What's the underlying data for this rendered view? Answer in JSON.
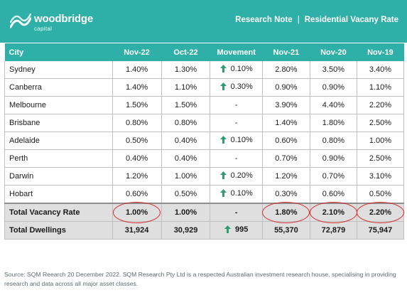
{
  "brand": {
    "name": "woodbridge",
    "sub": "capital"
  },
  "header": {
    "note": "Research Note",
    "separator": "|",
    "subject": "Residential Vacany Rate"
  },
  "table": {
    "columns": [
      "City",
      "Nov-22",
      "Oct-22",
      "Movement",
      "Nov-21",
      "Nov-20",
      "Nov-19"
    ],
    "rows": [
      {
        "city": "Sydney",
        "nov22": "1.40%",
        "oct22": "1.30%",
        "movement": "0.10%",
        "up": true,
        "nov21": "2.80%",
        "nov20": "3.50%",
        "nov19": "3.40%"
      },
      {
        "city": "Canberra",
        "nov22": "1.40%",
        "oct22": "1.10%",
        "movement": "0.30%",
        "up": true,
        "nov21": "0.90%",
        "nov20": "0.90%",
        "nov19": "1.10%"
      },
      {
        "city": "Melbourne",
        "nov22": "1.50%",
        "oct22": "1.50%",
        "movement": "-",
        "up": false,
        "nov21": "3.90%",
        "nov20": "4.40%",
        "nov19": "2.20%"
      },
      {
        "city": "Brisbane",
        "nov22": "0.80%",
        "oct22": "0.80%",
        "movement": "-",
        "up": false,
        "nov21": "1.40%",
        "nov20": "1.80%",
        "nov19": "2.50%"
      },
      {
        "city": "Adelaide",
        "nov22": "0.50%",
        "oct22": "0.40%",
        "movement": "0.10%",
        "up": true,
        "nov21": "0.60%",
        "nov20": "0.80%",
        "nov19": "1.00%"
      },
      {
        "city": "Perth",
        "nov22": "0.40%",
        "oct22": "0.40%",
        "movement": "-",
        "up": false,
        "nov21": "0.70%",
        "nov20": "0.90%",
        "nov19": "2.50%"
      },
      {
        "city": "Darwin",
        "nov22": "1.20%",
        "oct22": "1.00%",
        "movement": "0.20%",
        "up": true,
        "nov21": "1.20%",
        "nov20": "0.70%",
        "nov19": "3.10%"
      },
      {
        "city": "Hobart",
        "nov22": "0.60%",
        "oct22": "0.50%",
        "movement": "0.10%",
        "up": true,
        "nov21": "0.30%",
        "nov20": "0.60%",
        "nov19": "0.50%"
      }
    ],
    "total_vacancy": {
      "label": "Total Vacancy Rate",
      "nov22": "1.00%",
      "oct22": "1.00%",
      "movement": "-",
      "nov21": "1.80%",
      "nov20": "2.10%",
      "nov19": "2.20%"
    },
    "total_dwellings": {
      "label": "Total Dwellings",
      "nov22": "31,924",
      "oct22": "30,929",
      "movement": "995",
      "nov21": "55,370",
      "nov20": "72,879",
      "nov19": "75,947"
    }
  },
  "source": "Source: SQM Reearch 20 December 2022. SQM Research Pty Ltd is a respected Australian investment research house, specialising in providing research and data across all major asset classes.",
  "colors": {
    "header": "#2eafa7",
    "arrow": "#2e9e6e",
    "circle": "#d62a2a"
  }
}
